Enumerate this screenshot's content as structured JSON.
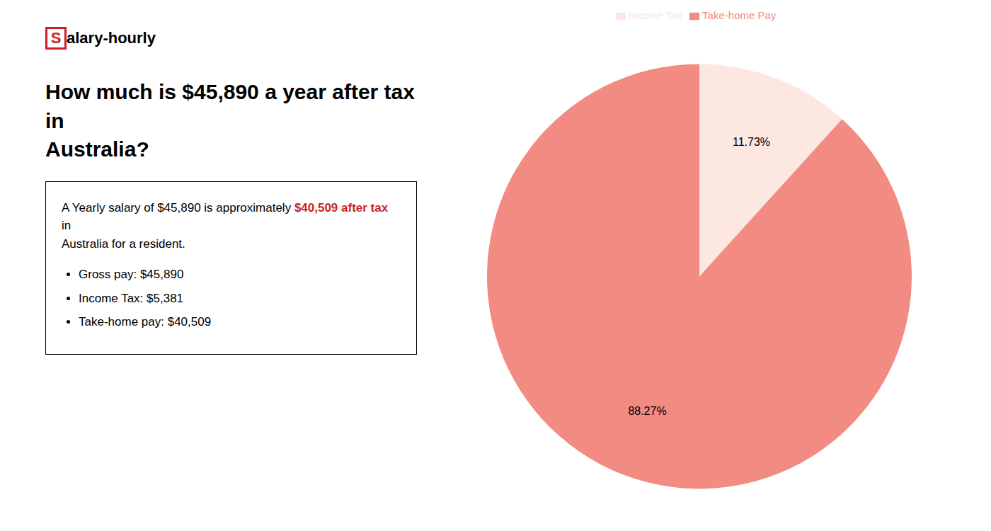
{
  "chart_data": {
    "type": "pie",
    "title": "How much is $45,890 a year after tax in\nAustralia?",
    "annotations": [
      {
        "text": "S",
        "color": "#cc1f1f"
      },
      {
        "text": "alary-hourly"
      },
      {
        "text": "A Yearly salary of $45,890 is approximately "
      },
      {
        "text": "$40,509 after tax",
        "color": "#cc1f1f"
      },
      {
        "text": " in"
      },
      {
        "text": "Australia for a resident."
      },
      {
        "text": "Gross pay: $45,890"
      },
      {
        "text": "Income Tax: $5,381"
      },
      {
        "text": "Take-home pay: $40,509"
      }
    ],
    "categories": [
      "Income Tax",
      "Take-home Pay"
    ],
    "values": [
      11.73,
      88.27
    ],
    "value_labels": [
      "11.73%",
      "88.27%"
    ],
    "colors": [
      "#fce8e0",
      "#f28b82"
    ],
    "data_labels": true,
    "legend": "top"
  }
}
